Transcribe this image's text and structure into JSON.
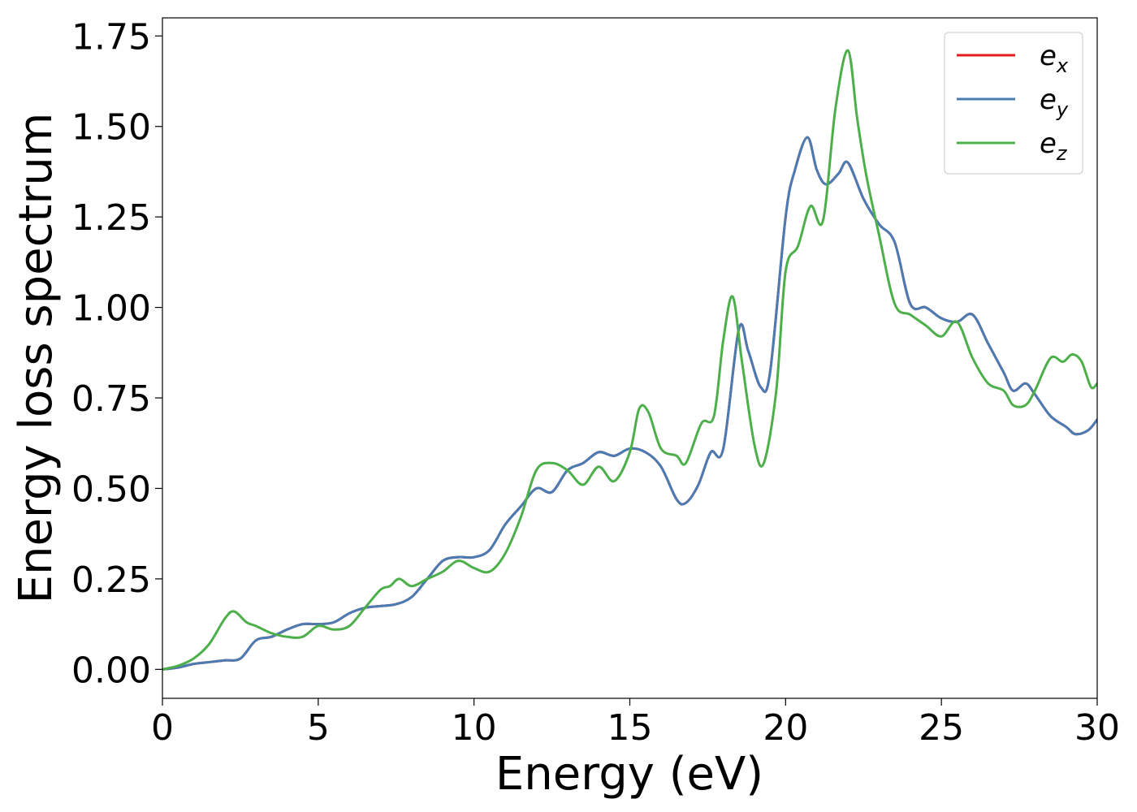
{
  "chart_data": {
    "type": "line",
    "title": "",
    "xlabel": "Energy (eV)",
    "ylabel": "Energy loss spectrum",
    "xlim": [
      0,
      30
    ],
    "ylim": [
      -0.08,
      1.8
    ],
    "xticks": [
      0,
      5,
      10,
      15,
      20,
      25,
      30
    ],
    "xtick_labels": [
      "0",
      "5",
      "10",
      "15",
      "20",
      "25",
      "30"
    ],
    "yticks": [
      0,
      0.25,
      0.5,
      0.75,
      1.0,
      1.25,
      1.5,
      1.75
    ],
    "ytick_labels": [
      "0.00",
      "0.25",
      "0.50",
      "0.75",
      "1.00",
      "1.25",
      "1.50",
      "1.75"
    ],
    "grid": false,
    "legend_position": "top-right",
    "series": [
      {
        "name": "e_x",
        "label_main": "e",
        "label_sub": "x",
        "color": "#e41a1c",
        "x": [
          0,
          0.5,
          1,
          1.5,
          2,
          2.5,
          3,
          3.5,
          4,
          4.5,
          5,
          5.5,
          6,
          6.5,
          7,
          7.5,
          8,
          8.5,
          9,
          9.5,
          10,
          10.5,
          11,
          11.5,
          12,
          12.5,
          13,
          13.5,
          14,
          14.5,
          15,
          15.5,
          16,
          16.5,
          16.8,
          17.2,
          17.6,
          18,
          18.5,
          18.8,
          19.2,
          19.5,
          20,
          20.3,
          20.7,
          21,
          21.3,
          21.7,
          22,
          22.5,
          23,
          23.5,
          24,
          24.5,
          25,
          25.5,
          26,
          26.5,
          27,
          27.3,
          27.7,
          28,
          28.5,
          29,
          29.3,
          29.7,
          30
        ],
        "y": [
          0.0,
          0.005,
          0.015,
          0.02,
          0.025,
          0.03,
          0.08,
          0.09,
          0.11,
          0.125,
          0.125,
          0.13,
          0.155,
          0.17,
          0.175,
          0.18,
          0.2,
          0.25,
          0.3,
          0.31,
          0.31,
          0.33,
          0.4,
          0.45,
          0.5,
          0.49,
          0.55,
          0.57,
          0.6,
          0.59,
          0.61,
          0.6,
          0.56,
          0.47,
          0.46,
          0.51,
          0.6,
          0.61,
          0.94,
          0.88,
          0.78,
          0.82,
          1.25,
          1.38,
          1.47,
          1.38,
          1.34,
          1.37,
          1.4,
          1.3,
          1.23,
          1.18,
          1.01,
          1.0,
          0.97,
          0.96,
          0.98,
          0.9,
          0.82,
          0.77,
          0.79,
          0.76,
          0.7,
          0.67,
          0.65,
          0.66,
          0.69
        ]
      },
      {
        "name": "e_y",
        "label_main": "e",
        "label_sub": "y",
        "color": "#4a7cb3",
        "x": [
          0,
          0.5,
          1,
          1.5,
          2,
          2.5,
          3,
          3.5,
          4,
          4.5,
          5,
          5.5,
          6,
          6.5,
          7,
          7.5,
          8,
          8.5,
          9,
          9.5,
          10,
          10.5,
          11,
          11.5,
          12,
          12.5,
          13,
          13.5,
          14,
          14.5,
          15,
          15.5,
          16,
          16.5,
          16.8,
          17.2,
          17.6,
          18,
          18.5,
          18.8,
          19.2,
          19.5,
          20,
          20.3,
          20.7,
          21,
          21.3,
          21.7,
          22,
          22.5,
          23,
          23.5,
          24,
          24.5,
          25,
          25.5,
          26,
          26.5,
          27,
          27.3,
          27.7,
          28,
          28.5,
          29,
          29.3,
          29.7,
          30
        ],
        "y": [
          0.0,
          0.005,
          0.015,
          0.02,
          0.025,
          0.03,
          0.08,
          0.09,
          0.11,
          0.125,
          0.125,
          0.13,
          0.155,
          0.17,
          0.175,
          0.18,
          0.2,
          0.25,
          0.3,
          0.31,
          0.31,
          0.33,
          0.4,
          0.45,
          0.5,
          0.49,
          0.55,
          0.57,
          0.6,
          0.59,
          0.61,
          0.6,
          0.56,
          0.47,
          0.46,
          0.51,
          0.6,
          0.61,
          0.94,
          0.88,
          0.78,
          0.82,
          1.25,
          1.38,
          1.47,
          1.38,
          1.34,
          1.37,
          1.4,
          1.3,
          1.23,
          1.18,
          1.01,
          1.0,
          0.97,
          0.96,
          0.98,
          0.9,
          0.82,
          0.77,
          0.79,
          0.76,
          0.7,
          0.67,
          0.65,
          0.66,
          0.69
        ]
      },
      {
        "name": "e_z",
        "label_main": "e",
        "label_sub": "z",
        "color": "#4daf4a",
        "x": [
          0,
          0.5,
          1,
          1.5,
          2,
          2.3,
          2.7,
          3,
          3.5,
          4,
          4.5,
          5,
          5.5,
          6,
          6.5,
          7,
          7.3,
          7.6,
          8,
          8.5,
          9,
          9.5,
          10,
          10.5,
          11,
          11.5,
          12,
          12.5,
          13,
          13.5,
          14,
          14.5,
          15,
          15.3,
          15.6,
          16,
          16.5,
          16.8,
          17.3,
          17.7,
          18,
          18.3,
          18.6,
          19,
          19.3,
          19.7,
          20,
          20.4,
          20.8,
          21.2,
          21.6,
          22,
          22.3,
          22.6,
          23,
          23.5,
          24,
          24.5,
          25,
          25.5,
          26,
          26.5,
          27,
          27.3,
          27.7,
          28,
          28.5,
          28.9,
          29.2,
          29.5,
          29.8,
          30
        ],
        "y": [
          0.0,
          0.01,
          0.03,
          0.07,
          0.14,
          0.16,
          0.13,
          0.12,
          0.1,
          0.09,
          0.09,
          0.12,
          0.11,
          0.12,
          0.17,
          0.22,
          0.23,
          0.25,
          0.23,
          0.25,
          0.27,
          0.3,
          0.28,
          0.27,
          0.32,
          0.42,
          0.55,
          0.57,
          0.55,
          0.51,
          0.56,
          0.52,
          0.6,
          0.72,
          0.71,
          0.61,
          0.59,
          0.57,
          0.68,
          0.7,
          0.91,
          1.03,
          0.85,
          0.62,
          0.57,
          0.77,
          1.1,
          1.17,
          1.28,
          1.24,
          1.55,
          1.71,
          1.52,
          1.36,
          1.2,
          1.01,
          0.98,
          0.95,
          0.92,
          0.96,
          0.86,
          0.79,
          0.77,
          0.73,
          0.73,
          0.77,
          0.86,
          0.85,
          0.87,
          0.85,
          0.78,
          0.79
        ]
      }
    ]
  }
}
